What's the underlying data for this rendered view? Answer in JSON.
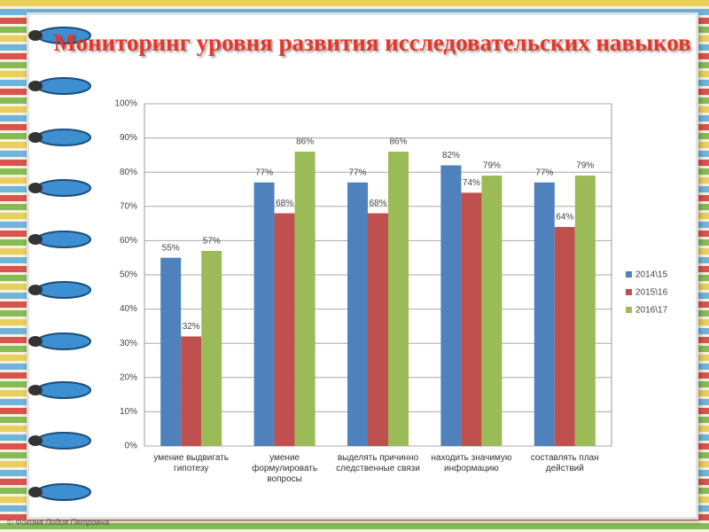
{
  "footer": "© Фокина Лидия Петровна",
  "chart_data": {
    "type": "bar",
    "title": "Мониторинг уровня развития исследовательских навыков",
    "categories": [
      "умение выдвигать гипотезу",
      "умение формулировать вопросы",
      "выделять причинно следственные связи",
      "находить значимую информацию",
      "составлять план действий"
    ],
    "series": [
      {
        "name": "2014\\15",
        "color": "#4f81bd",
        "values": [
          55,
          77,
          77,
          82,
          77
        ],
        "value_labels": [
          "55%",
          "77%",
          "77%",
          "82%",
          "77%"
        ]
      },
      {
        "name": "2015\\16",
        "color": "#c0504d",
        "values": [
          32,
          68,
          68,
          74,
          64
        ],
        "value_labels": [
          "32%",
          "68%",
          "68%",
          "74%",
          "64%"
        ]
      },
      {
        "name": "2016\\17",
        "color": "#9bbb59",
        "values": [
          57,
          86,
          86,
          79,
          79
        ],
        "value_labels": [
          "57%",
          "86%",
          "86%",
          "79%",
          "79%"
        ]
      }
    ],
    "ylim": [
      0,
      100
    ],
    "yticks": [
      {
        "value": 0,
        "label": "0%"
      },
      {
        "value": 10,
        "label": "10%"
      },
      {
        "value": 20,
        "label": "20%"
      },
      {
        "value": 30,
        "label": "30%"
      },
      {
        "value": 40,
        "label": "40%"
      },
      {
        "value": 50,
        "label": "50%"
      },
      {
        "value": 60,
        "label": "60%"
      },
      {
        "value": 70,
        "label": "70%"
      },
      {
        "value": 80,
        "label": "80%"
      },
      {
        "value": 90,
        "label": "90%"
      },
      {
        "value": 100,
        "label": "100%"
      }
    ],
    "grid": true,
    "legend": "right"
  }
}
